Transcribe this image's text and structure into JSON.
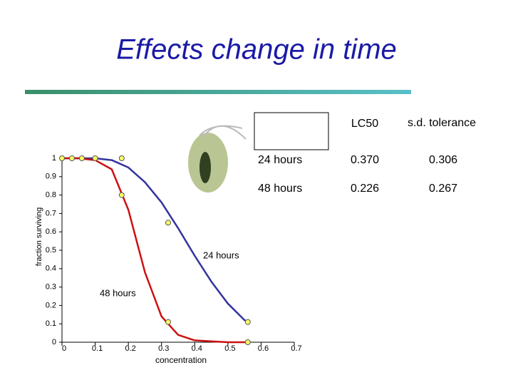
{
  "chart_data": {
    "type": "line",
    "title": "Effects change in time",
    "x_label": "concentration",
    "y_label": "fraction surviving",
    "x": [
      0,
      0.05,
      0.1,
      0.15,
      0.2,
      0.25,
      0.3,
      0.35,
      0.4,
      0.45,
      0.5,
      0.55,
      0.56
    ],
    "series": [
      {
        "name": "24 hours",
        "color": "#3333a0",
        "values": [
          1,
          1,
          1,
          0.99,
          0.95,
          0.87,
          0.76,
          0.62,
          0.47,
          0.33,
          0.21,
          0.12,
          0.11
        ]
      },
      {
        "name": "48 hours",
        "color": "#cc1111",
        "values": [
          1,
          1,
          0.99,
          0.94,
          0.72,
          0.38,
          0.14,
          0.04,
          0.01,
          0.005,
          0,
          0,
          0
        ]
      }
    ],
    "points": {
      "color": "#ffff66",
      "x": [
        0,
        0.03,
        0.06,
        0.1,
        0.18,
        0.18,
        0.32,
        0.32,
        0.56,
        0.56
      ],
      "values": [
        1,
        1,
        1,
        1,
        1,
        0.8,
        0.65,
        0.11,
        0.11,
        0
      ]
    },
    "xlim": [
      0,
      0.7
    ],
    "xticks": [
      0,
      0.1,
      0.2,
      0.3,
      0.4,
      0.5,
      0.6,
      0.7
    ],
    "ylim": [
      0,
      1
    ],
    "yticks": [
      0,
      0.1,
      0.2,
      0.3,
      0.4,
      0.5,
      0.6,
      0.7,
      0.8,
      0.9,
      1
    ]
  },
  "table": {
    "header": [
      "LC50",
      "s.d. tolerance"
    ],
    "rows": [
      [
        "24 hours",
        "0.370",
        "0.306"
      ],
      [
        "48 hours",
        "0.226",
        "0.267"
      ]
    ]
  }
}
